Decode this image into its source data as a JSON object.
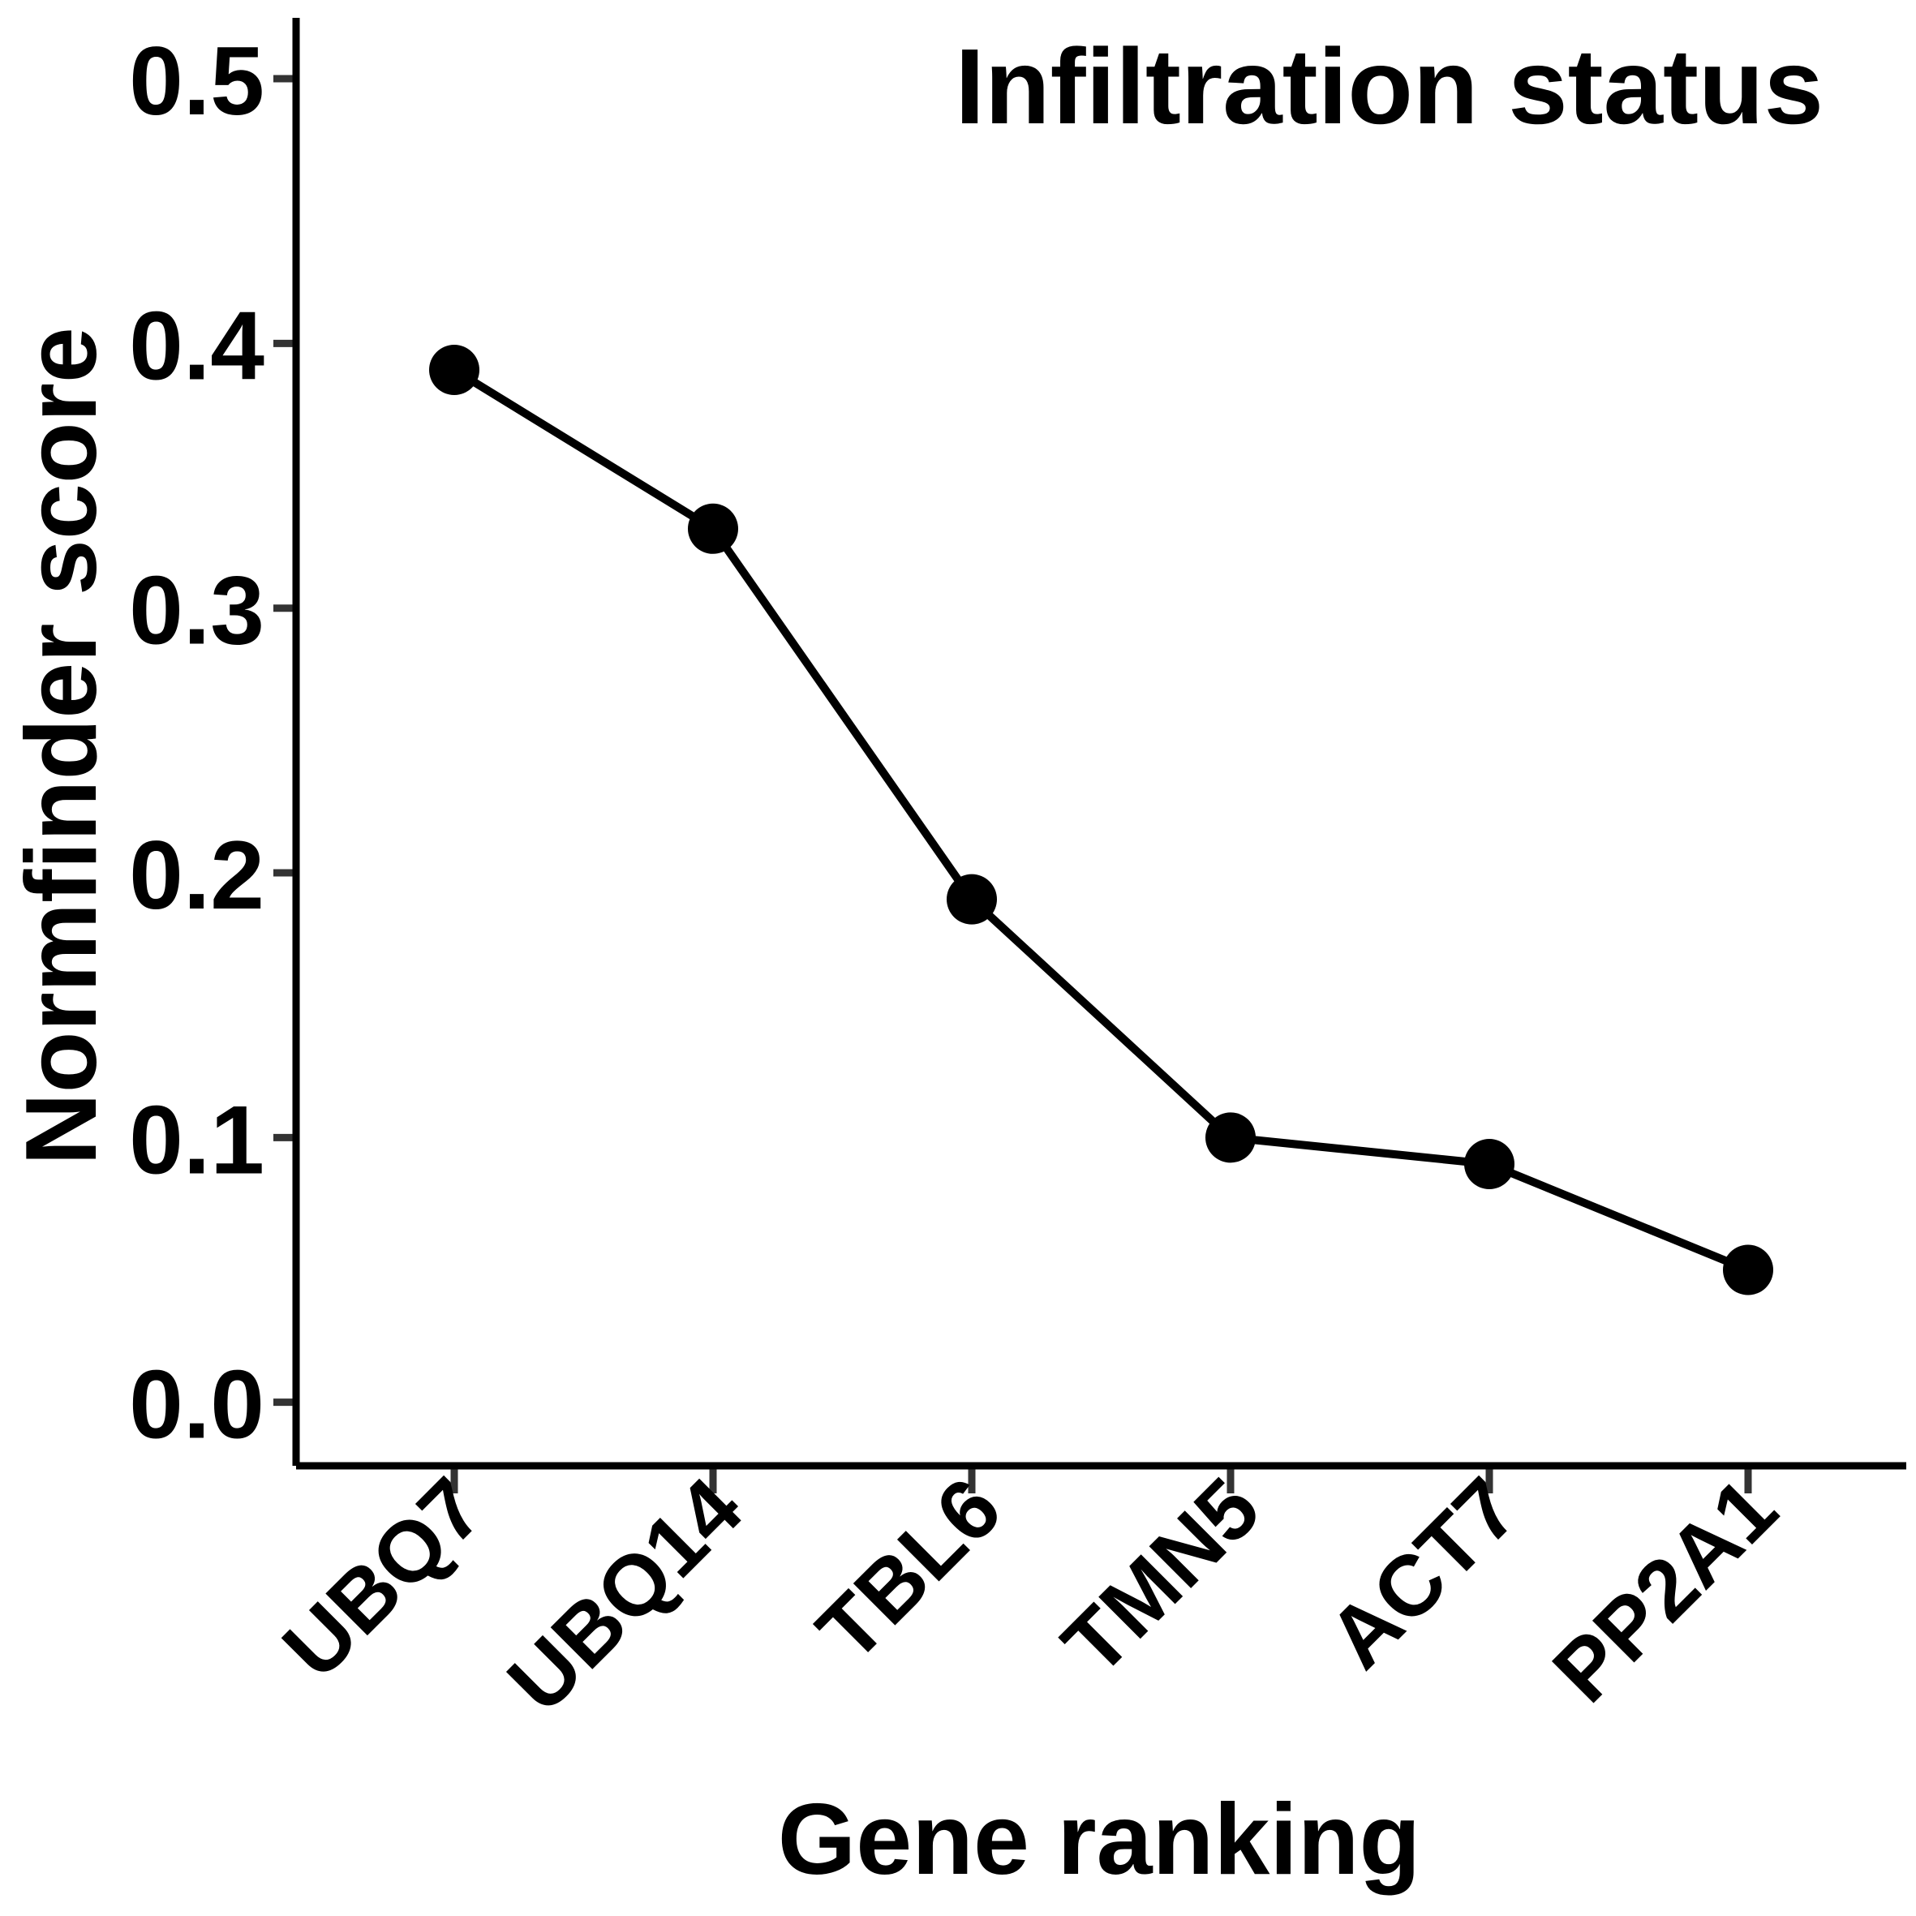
{
  "chart_data": {
    "type": "line",
    "title": "Infiltration status",
    "xlabel": "Gene ranking",
    "ylabel": "Normfinder score",
    "categories": [
      "UBQ7",
      "UBQ14",
      "TBL6",
      "TMN5",
      "ACT7",
      "PP2A1"
    ],
    "series": [
      {
        "values": [
          0.39,
          0.33,
          0.19,
          0.1,
          0.09,
          0.05
        ]
      }
    ],
    "ylim": [
      -0.024,
      0.523
    ],
    "yticks": [
      0.0,
      0.1,
      0.2,
      0.3,
      0.4,
      0.5
    ],
    "ytick_labels": [
      "0.0",
      "0.1",
      "0.2",
      "0.3",
      "0.4",
      "0.5"
    ],
    "grid": false,
    "legend": "none",
    "colors": {
      "line": "#000000",
      "points": "#000000",
      "axis": "#000000",
      "ticks": "#333333"
    }
  }
}
